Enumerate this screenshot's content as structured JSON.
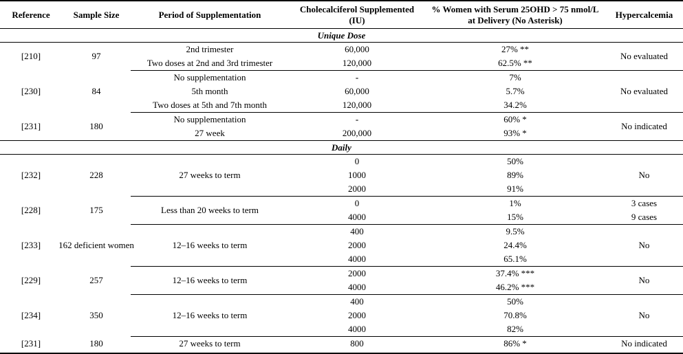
{
  "page": {
    "background_color": "#ffffff",
    "text_color": "#000000",
    "rule_color": "#000000"
  },
  "table": {
    "columns": [
      "Reference",
      "Sample Size",
      "Period of Supplementation",
      "Cholecalciferol Supplemented (IU)",
      "% Women with Serum 25OHD > 75 nmol/L at Delivery (No Asterisk)",
      "Hypercalcemia"
    ],
    "sections": [
      {
        "title": "Unique Dose",
        "groups": [
          {
            "reference": "[210]",
            "sample_size": "97",
            "period": [
              "2nd trimester",
              "Two doses at 2nd and 3rd trimester"
            ],
            "dose": [
              "60,000",
              "120,000"
            ],
            "percent": [
              "27% **",
              "62.5% **"
            ],
            "hypercalcemia": [
              "No evaluated"
            ]
          },
          {
            "reference": "[230]",
            "sample_size": "84",
            "period": [
              "No supplementation",
              "5th month",
              "Two doses at 5th and 7th month"
            ],
            "dose": [
              "-",
              "60,000",
              "120,000"
            ],
            "percent": [
              "7%",
              "5.7%",
              "34.2%"
            ],
            "hypercalcemia": [
              "No evaluated"
            ]
          },
          {
            "reference": "[231]",
            "sample_size": "180",
            "period": [
              "No supplementation",
              "27 week"
            ],
            "dose": [
              "-",
              "200,000"
            ],
            "percent": [
              "60% *",
              "93% *"
            ],
            "hypercalcemia": [
              "No indicated"
            ]
          }
        ]
      },
      {
        "title": "Daily",
        "groups": [
          {
            "reference": "[232]",
            "sample_size": "228",
            "period": [
              "27 weeks to term"
            ],
            "dose": [
              "0",
              "1000",
              "2000"
            ],
            "percent": [
              "50%",
              "89%",
              "91%"
            ],
            "hypercalcemia": [
              "No"
            ]
          },
          {
            "reference": "[228]",
            "sample_size": "175",
            "period": [
              "Less than 20 weeks to term"
            ],
            "dose": [
              "0",
              "4000"
            ],
            "percent": [
              "1%",
              "15%"
            ],
            "hypercalcemia": [
              "3 cases",
              "9 cases"
            ]
          },
          {
            "reference": "[233]",
            "sample_size": "162 deficient women",
            "period": [
              "12–16 weeks to term"
            ],
            "dose": [
              "400",
              "2000",
              "4000"
            ],
            "percent": [
              "9.5%",
              "24.4%",
              "65.1%"
            ],
            "hypercalcemia": [
              "No"
            ]
          },
          {
            "reference": "[229]",
            "sample_size": "257",
            "period": [
              "12–16 weeks to term"
            ],
            "dose": [
              "2000",
              "4000"
            ],
            "percent": [
              "37.4% ***",
              "46.2% ***"
            ],
            "hypercalcemia": [
              "No"
            ]
          },
          {
            "reference": "[234]",
            "sample_size": "350",
            "period": [
              "12–16 weeks to term"
            ],
            "dose": [
              "400",
              "2000",
              "4000"
            ],
            "percent": [
              "50%",
              "70.8%",
              "82%"
            ],
            "hypercalcemia": [
              "No"
            ]
          },
          {
            "reference": "[231]",
            "sample_size": "180",
            "period": [
              "27 weeks to term"
            ],
            "dose": [
              "800"
            ],
            "percent": [
              "86% *"
            ],
            "hypercalcemia": [
              "No indicated"
            ]
          }
        ]
      }
    ]
  }
}
